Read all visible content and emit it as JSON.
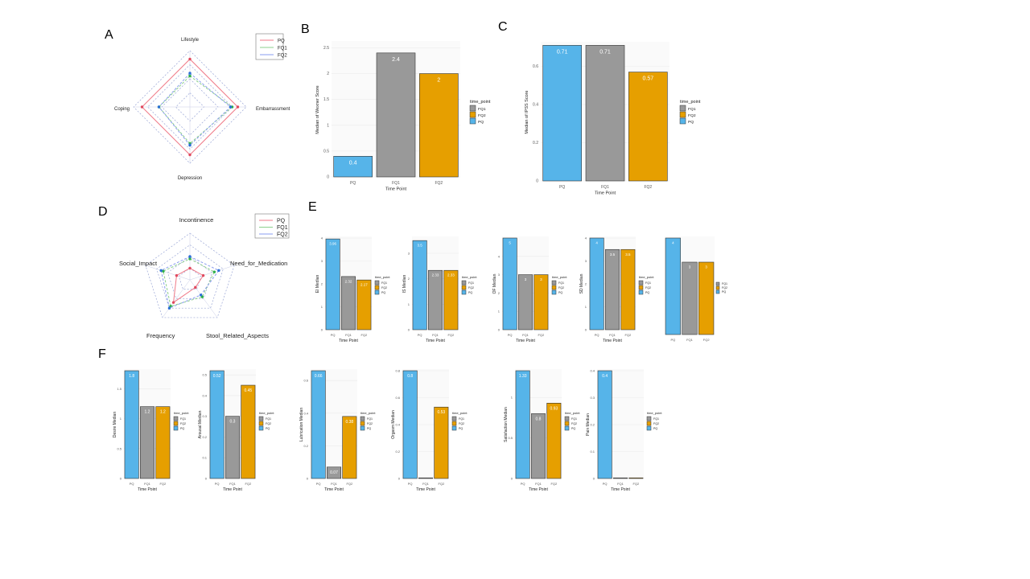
{
  "panel_letters": {
    "a": "A",
    "b": "B",
    "c": "C",
    "d": "D",
    "e": "E",
    "f": "F"
  },
  "colors": {
    "PQ": "#56b4e9",
    "FQ1": "#999999",
    "FQ2": "#e69f00",
    "radar_PQ": "#f07a88",
    "radar_FQ1": "#8ccf8c",
    "radar_FQ2": "#8a9cf0"
  },
  "chart_data": [
    {
      "id": "A",
      "type": "radar",
      "axes": [
        "Lifestyle",
        "Embarrassment",
        "Depression",
        "Coping"
      ],
      "series": [
        {
          "name": "PQ",
          "values": [
            0.85,
            0.85,
            0.85,
            0.85
          ]
        },
        {
          "name": "FQ1",
          "values": [
            0.55,
            0.75,
            0.65,
            0.55
          ]
        },
        {
          "name": "FQ2",
          "values": [
            0.6,
            0.72,
            0.68,
            0.55
          ]
        }
      ],
      "legend": [
        "PQ",
        "FQ1",
        "FQ2"
      ]
    },
    {
      "id": "B",
      "type": "bar",
      "categories": [
        "PQ",
        "FQ1",
        "FQ2"
      ],
      "values": [
        0.4,
        2.4,
        2.0
      ],
      "labels": [
        "0.4",
        "2.4",
        "2"
      ],
      "xlabel": "Time Point",
      "ylabel": "Median of Wexner Score",
      "ylim": [
        0,
        2.6
      ],
      "ticks": [
        0.0,
        0.5,
        1.0,
        1.5,
        2.0,
        2.5
      ],
      "legend_title": "time_point",
      "legend": [
        "FQ1",
        "FQ2",
        "PQ"
      ]
    },
    {
      "id": "C",
      "type": "bar",
      "categories": [
        "PQ",
        "FQ1",
        "FQ2"
      ],
      "values": [
        0.71,
        0.71,
        0.57
      ],
      "labels": [
        "0.71",
        "0.71",
        "0.57"
      ],
      "xlabel": "Time Point",
      "ylabel": "Median of IPSS Score",
      "ylim": [
        0,
        0.72
      ],
      "ticks": [
        0.0,
        0.2,
        0.4,
        0.6
      ],
      "legend_title": "time_point",
      "legend": [
        "FQ1",
        "FQ2",
        "PQ"
      ]
    },
    {
      "id": "D",
      "type": "radar",
      "axes": [
        "Incontinence",
        "Need_for_Medication",
        "Stool_Related_Aspects",
        "Frequency",
        "Social_Impact"
      ],
      "series": [
        {
          "name": "PQ",
          "values": [
            0.25,
            0.3,
            0.2,
            0.6,
            0.3
          ]
        },
        {
          "name": "FQ1",
          "values": [
            0.45,
            0.55,
            0.45,
            0.7,
            0.6
          ]
        },
        {
          "name": "FQ2",
          "values": [
            0.5,
            0.65,
            0.4,
            0.75,
            0.65
          ]
        }
      ],
      "legend": [
        "PQ",
        "FQ1",
        "FQ2"
      ]
    },
    {
      "id": "E1",
      "type": "bar",
      "categories": [
        "PQ",
        "FQ1",
        "FQ2"
      ],
      "values": [
        3.96,
        2.32,
        2.17
      ],
      "labels": [
        "3.96",
        "2.32",
        "2.17"
      ],
      "xlabel": "Time Point",
      "ylabel": "EI Median",
      "ylim": [
        0,
        4
      ],
      "ticks": [
        0,
        1,
        2,
        3,
        4
      ],
      "legend_title": "time_point",
      "legend": [
        "FQ1",
        "FQ2",
        "PQ"
      ]
    },
    {
      "id": "E2",
      "type": "bar",
      "categories": [
        "PQ",
        "FQ1",
        "FQ2"
      ],
      "values": [
        3.5,
        2.33,
        2.33
      ],
      "labels": [
        "3.5",
        "2.33",
        "2.33"
      ],
      "xlabel": "Time Point",
      "ylabel": "IS Median",
      "ylim": [
        0,
        3.6
      ],
      "ticks": [
        0,
        1,
        2,
        3
      ],
      "legend_title": "time_point",
      "legend": [
        "FQ1",
        "FQ2",
        "PQ"
      ]
    },
    {
      "id": "E3",
      "type": "bar",
      "categories": [
        "PQ",
        "FQ1",
        "FQ2"
      ],
      "values": [
        5,
        3,
        3
      ],
      "labels": [
        "5",
        "3",
        "3"
      ],
      "xlabel": "Time Point",
      "ylabel": "OF Median",
      "ylim": [
        0,
        5
      ],
      "ticks": [
        0,
        1,
        2,
        3,
        4
      ],
      "legend_title": "time_point",
      "legend": [
        "FQ1",
        "FQ2",
        "PQ"
      ]
    },
    {
      "id": "E4",
      "type": "bar",
      "categories": [
        "PQ",
        "FQ1",
        "FQ2"
      ],
      "values": [
        4,
        3.5,
        3.5
      ],
      "labels": [
        "4",
        "3.5",
        "3.5"
      ],
      "xlabel": "Time Point",
      "ylabel": "SD Median",
      "ylim": [
        0,
        4
      ],
      "ticks": [
        0,
        1,
        2,
        3,
        4
      ],
      "legend_title": "time_point",
      "legend": [
        "FQ1",
        "FQ2",
        "PQ"
      ]
    },
    {
      "id": "E5",
      "type": "bar",
      "categories": [
        "PQ",
        "FQ1",
        "FQ2"
      ],
      "values": [
        4,
        3,
        3
      ],
      "labels": [
        "4",
        "3",
        "3"
      ],
      "xlabel": "",
      "ylabel": "",
      "ylim": [
        0,
        4
      ],
      "ticks": [],
      "legend_title": "",
      "legend": [
        "FQ1",
        "FQ2",
        "PQ"
      ]
    },
    {
      "id": "F1",
      "type": "bar",
      "categories": [
        "PQ",
        "FQ1",
        "FQ2"
      ],
      "values": [
        1.8,
        1.2,
        1.2
      ],
      "labels": [
        "1.8",
        "1.2",
        "1.2"
      ],
      "xlabel": "Time Point",
      "ylabel": "Desire Median",
      "ylim": [
        0,
        1.8
      ],
      "ticks": [
        0.0,
        0.5,
        1.0,
        1.5
      ],
      "legend_title": "time_point",
      "legend": [
        "FQ1",
        "FQ2",
        "PQ"
      ]
    },
    {
      "id": "F2",
      "type": "bar",
      "categories": [
        "PQ",
        "FQ1",
        "FQ2"
      ],
      "values": [
        0.52,
        0.3,
        0.45
      ],
      "labels": [
        "0.52",
        "0.3",
        "0.45"
      ],
      "xlabel": "Time Point",
      "ylabel": "Arousal Median",
      "ylim": [
        0,
        0.52
      ],
      "ticks": [
        0.0,
        0.1,
        0.2,
        0.3,
        0.4,
        0.5
      ],
      "legend_title": "time_point",
      "legend": [
        "FQ1",
        "FQ2",
        "PQ"
      ]
    },
    {
      "id": "F3",
      "type": "bar",
      "categories": [
        "PQ",
        "FQ1",
        "FQ2"
      ],
      "values": [
        0.66,
        0.07,
        0.38
      ],
      "labels": [
        "0.66",
        "0.07",
        "0.38"
      ],
      "xlabel": "Time Point",
      "ylabel": "Lubrication Median",
      "ylim": [
        0,
        0.66
      ],
      "ticks": [
        0.0,
        0.2,
        0.4,
        0.6
      ],
      "legend_title": "time_point",
      "legend": [
        "FQ1",
        "FQ2",
        "PQ"
      ]
    },
    {
      "id": "F4",
      "type": "bar",
      "categories": [
        "PQ",
        "FQ1",
        "FQ2"
      ],
      "values": [
        0.8,
        0,
        0.53
      ],
      "labels": [
        "0.8",
        "0",
        "0.53"
      ],
      "xlabel": "Time Point",
      "ylabel": "Orgasm Median",
      "ylim": [
        0,
        0.8
      ],
      "ticks": [
        0.0,
        0.2,
        0.4,
        0.6,
        0.8
      ],
      "legend_title": "time_point",
      "legend": [
        "FQ1",
        "FQ2",
        "PQ"
      ]
    },
    {
      "id": "F5",
      "type": "bar",
      "categories": [
        "PQ",
        "FQ1",
        "FQ2"
      ],
      "values": [
        1.33,
        0.8,
        0.93
      ],
      "labels": [
        "1.33",
        "0.8",
        "0.93"
      ],
      "xlabel": "Time Point",
      "ylabel": "Satisfaction Median",
      "ylim": [
        0,
        1.33
      ],
      "ticks": [
        0.0,
        0.5,
        1.0
      ],
      "legend_title": "time_point",
      "legend": [
        "FQ1",
        "FQ2",
        "PQ"
      ]
    },
    {
      "id": "F6",
      "type": "bar",
      "categories": [
        "PQ",
        "FQ1",
        "FQ2"
      ],
      "values": [
        0.4,
        0,
        0
      ],
      "labels": [
        "0.4",
        "",
        ""
      ],
      "xlabel": "Time Point",
      "ylabel": "Pain Median",
      "ylim": [
        0,
        0.4
      ],
      "ticks": [
        0.0,
        0.1,
        0.2,
        0.3,
        0.4
      ],
      "legend_title": "time_point",
      "legend": [
        "FQ1",
        "FQ2",
        "PQ"
      ]
    }
  ]
}
